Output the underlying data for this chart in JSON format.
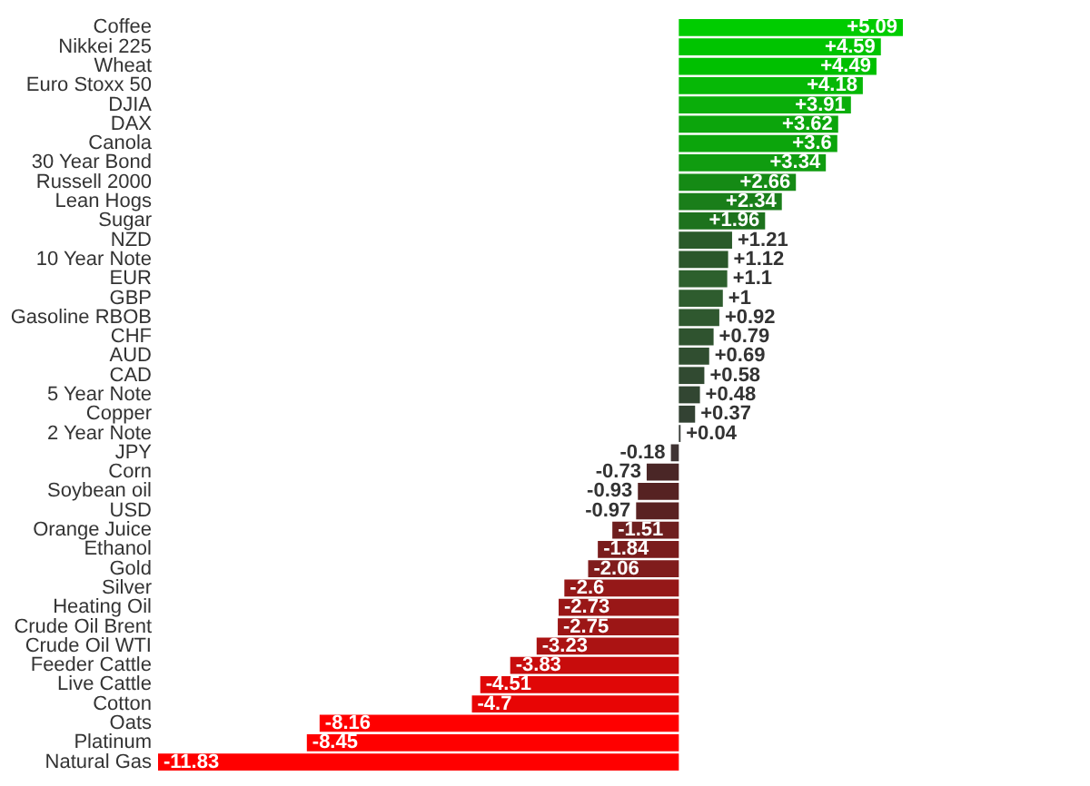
{
  "chart_data": {
    "type": "bar",
    "orientation": "horizontal",
    "categories": [
      "Coffee",
      "Nikkei 225",
      "Wheat",
      "Euro Stoxx 50",
      "DJIA",
      "DAX",
      "Canola",
      "30 Year Bond",
      "Russell 2000",
      "Lean Hogs",
      "Sugar",
      "NZD",
      "10 Year Note",
      "EUR",
      "GBP",
      "Gasoline RBOB",
      "CHF",
      "AUD",
      "CAD",
      "5 Year Note",
      "Copper",
      "2 Year Note",
      "JPY",
      "Corn",
      "Soybean oil",
      "USD",
      "Orange Juice",
      "Ethanol",
      "Gold",
      "Silver",
      "Heating Oil",
      "Crude Oil Brent",
      "Crude Oil WTI",
      "Feeder Cattle",
      "Live Cattle",
      "Cotton",
      "Oats",
      "Platinum",
      "Natural Gas"
    ],
    "values": [
      5.09,
      4.59,
      4.49,
      4.18,
      3.91,
      3.62,
      3.6,
      3.34,
      2.66,
      2.34,
      1.96,
      1.21,
      1.12,
      1.1,
      1,
      0.92,
      0.79,
      0.69,
      0.58,
      0.48,
      0.37,
      0.04,
      -0.18,
      -0.73,
      -0.93,
      -0.97,
      -1.51,
      -1.84,
      -2.06,
      -2.6,
      -2.73,
      -2.75,
      -3.23,
      -3.83,
      -4.51,
      -4.7,
      -8.16,
      -8.45,
      -11.83
    ],
    "value_labels": [
      "+5.09",
      "+4.59",
      "+4.49",
      "+4.18",
      "+3.91",
      "+3.62",
      "+3.6",
      "+3.34",
      "+2.66",
      "+2.34",
      "+1.96",
      "+1.21",
      "+1.12",
      "+1.1",
      "+1",
      "+0.92",
      "+0.79",
      "+0.69",
      "+0.58",
      "+0.48",
      "+0.37",
      "+0.04",
      "-0.18",
      "-0.73",
      "-0.93",
      "-0.97",
      "-1.51",
      "-1.84",
      "-2.06",
      "-2.6",
      "-2.73",
      "-2.75",
      "-3.23",
      "-3.83",
      "-4.51",
      "-4.7",
      "-8.16",
      "-8.45",
      "-11.83"
    ],
    "colors": [
      "#00cc00",
      "#00c400",
      "#00c000",
      "#06b806",
      "#0aae0a",
      "#0ca50c",
      "#0ca50c",
      "#109c10",
      "#158a15",
      "#1a7e1a",
      "#1d721d",
      "#2a5a2a",
      "#2b572b",
      "#2d602d",
      "#2e5c2e",
      "#2f582f",
      "#2f532f",
      "#304e30",
      "#314a31",
      "#324632",
      "#334233",
      "#3a3f3a",
      "#3f3333",
      "#4a2626",
      "#562222",
      "#5a2222",
      "#6e1f1f",
      "#7a1c1c",
      "#801c1c",
      "#951818",
      "#991717",
      "#9c1616",
      "#ab1313",
      "#c80c0c",
      "#e00707",
      "#e80505",
      "#ff0000",
      "#ff0000",
      "#ff0000"
    ]
  }
}
